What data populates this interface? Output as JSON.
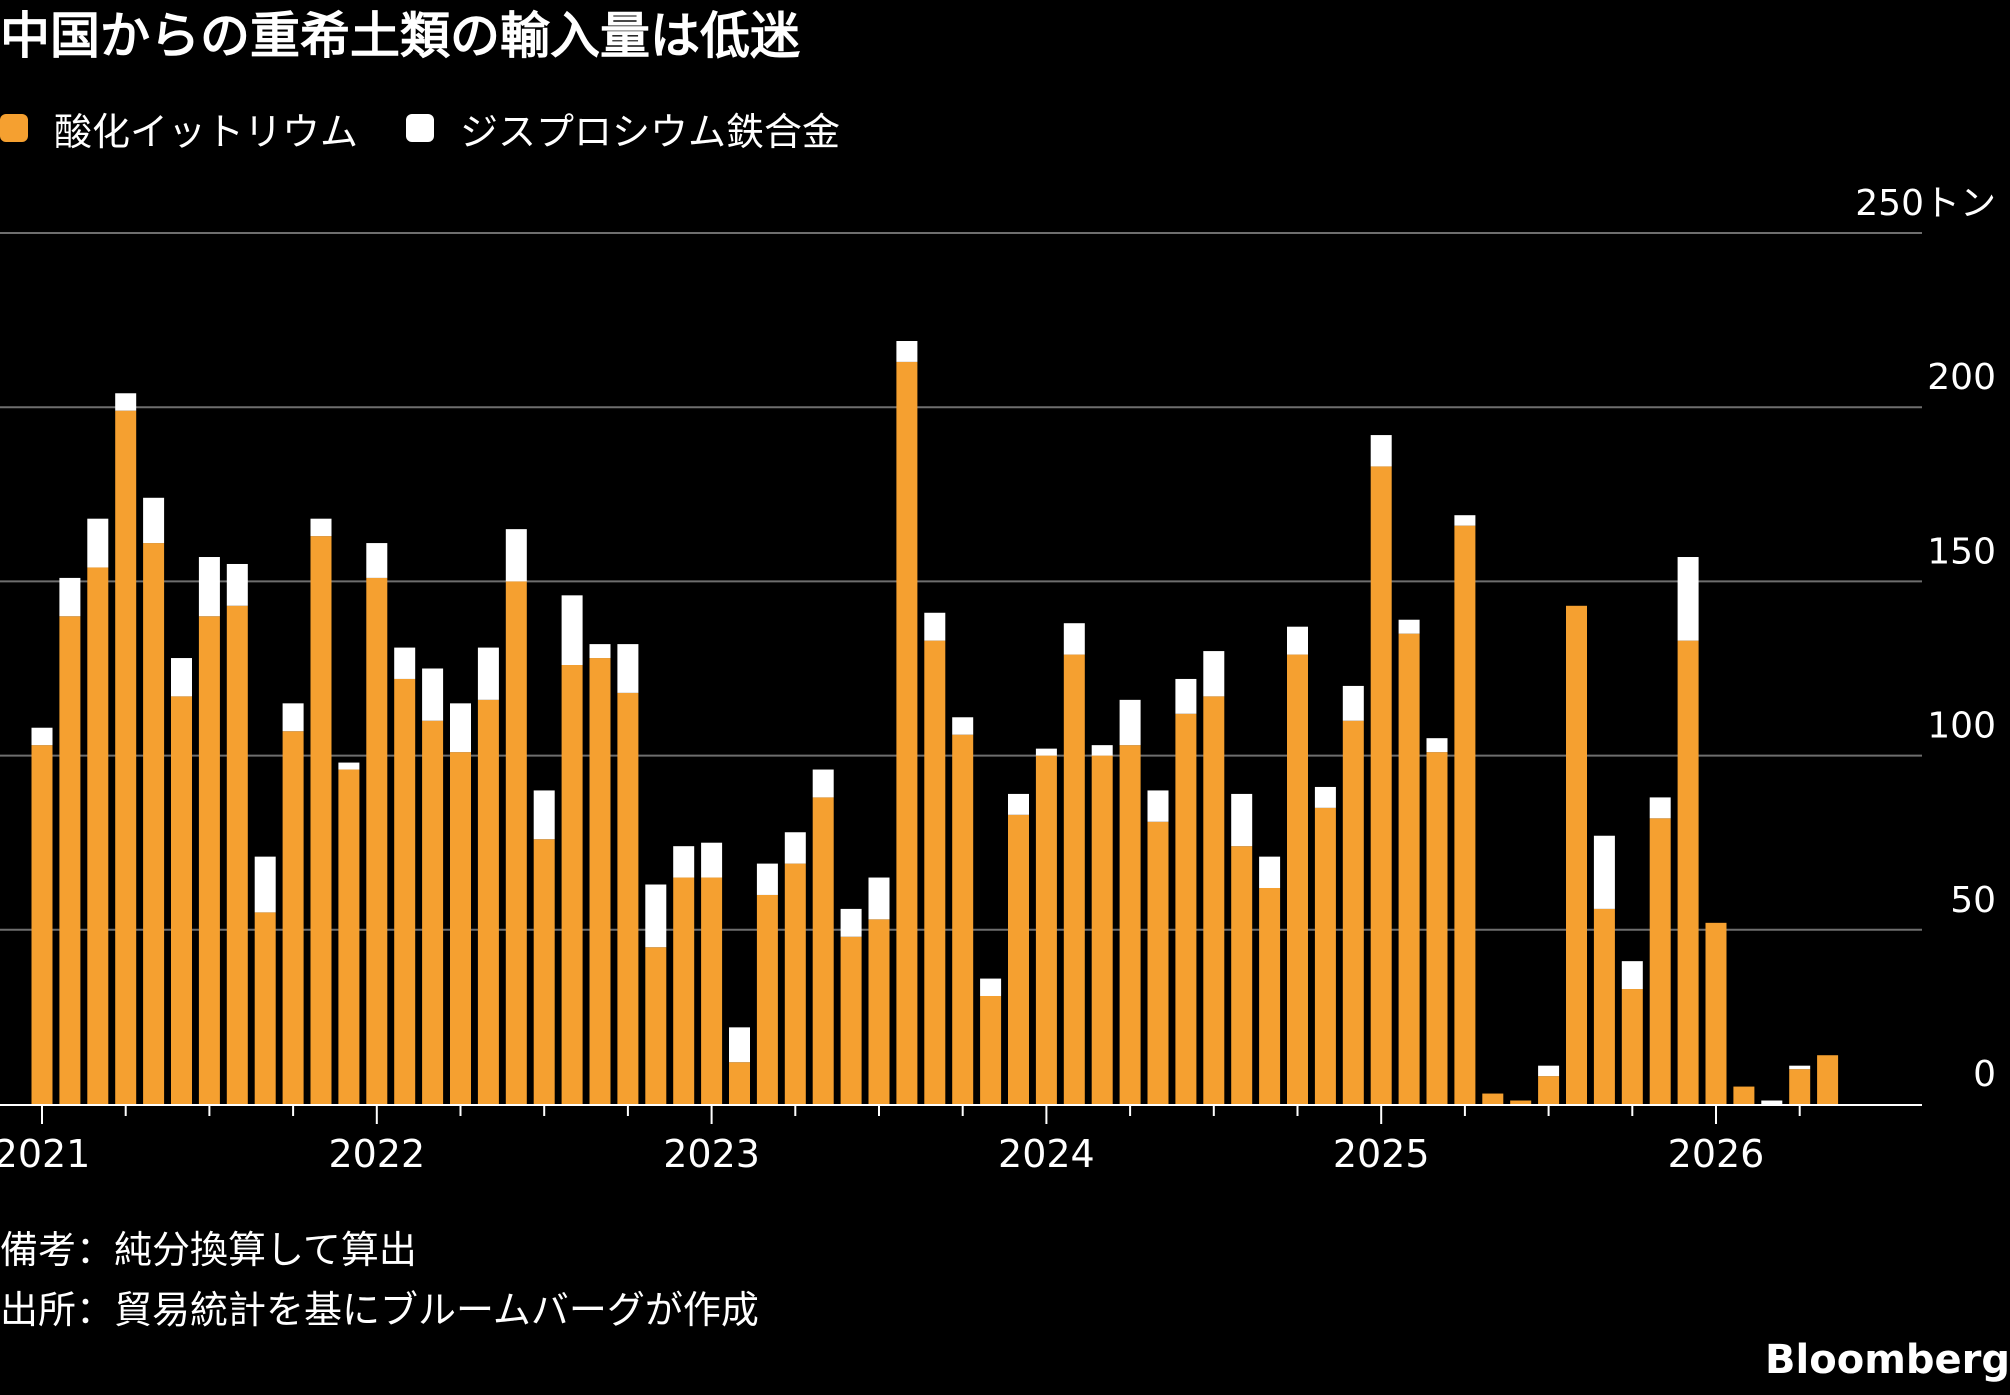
{
  "title": "中国からの重希土類の輸入量は低迷",
  "legend": [
    {
      "label": "酸化イットリウム",
      "color": "#f5a030"
    },
    {
      "label": "ジスプロシウム鉄合金",
      "color": "#ffffff"
    }
  ],
  "notes": {
    "remark": "備考：純分換算して算出",
    "source": "出所：貿易統計を基にブルームバーグが作成"
  },
  "logo": "Bloomberg",
  "chart_data": {
    "type": "bar",
    "stacked": true,
    "grid": true,
    "ylim": [
      0,
      250
    ],
    "y_ticks": [
      "0",
      "50",
      "100",
      "150",
      "200",
      "250トン"
    ],
    "x_tick_labels": [
      "2021",
      "2022",
      "2023",
      "2024",
      "2025",
      "2026"
    ],
    "x_start": "2021-01",
    "x_end": "2026-05",
    "series": [
      {
        "name": "酸化イットリウム",
        "color": "#f5a030",
        "values": [
          103,
          140,
          154,
          199,
          161,
          117,
          140,
          143,
          55,
          107,
          163,
          96,
          151,
          122,
          110,
          101,
          116,
          150,
          76,
          126,
          128,
          118,
          45,
          65,
          65,
          12,
          60,
          69,
          88,
          48,
          53,
          213,
          133,
          106,
          31,
          83,
          100,
          129,
          100,
          103,
          81,
          112,
          117,
          74,
          62,
          129,
          85,
          110,
          183,
          135,
          101,
          166,
          3,
          1,
          8,
          143,
          56,
          33,
          82,
          133,
          52,
          5,
          0,
          10,
          14
        ]
      },
      {
        "name": "ジスプロシウム鉄合金",
        "color": "#ffffff",
        "values": [
          5,
          11,
          14,
          5,
          13,
          11,
          17,
          12,
          16,
          8,
          5,
          2,
          10,
          9,
          15,
          14,
          15,
          15,
          14,
          20,
          4,
          14,
          18,
          9,
          10,
          10,
          9,
          9,
          8,
          8,
          12,
          6,
          8,
          5,
          5,
          6,
          2,
          9,
          3,
          13,
          9,
          10,
          13,
          15,
          9,
          8,
          6,
          10,
          9,
          4,
          4,
          3,
          0,
          0,
          3,
          0,
          21,
          8,
          6,
          24,
          0,
          0,
          1,
          1,
          0
        ]
      }
    ]
  }
}
